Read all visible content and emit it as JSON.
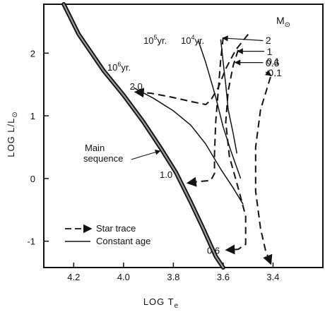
{
  "chart_data": {
    "type": "line",
    "xlabel": "LOG T",
    "xlabel_sub": "e",
    "ylabel": "LOG L/L",
    "ylabel_sub": "⊙",
    "x_reversed": true,
    "xlim": [
      4.32,
      3.2
    ],
    "ylim": [
      -1.42,
      2.78
    ],
    "x_ticks": [
      {
        "value": 4.2,
        "label": "4.2"
      },
      {
        "value": 4.0,
        "label": "4.0"
      },
      {
        "value": 3.8,
        "label": "3.8"
      },
      {
        "value": 3.6,
        "label": "3.6"
      },
      {
        "value": 3.4,
        "label": "3.4"
      }
    ],
    "y_ticks": [
      {
        "value": 2,
        "label": "2"
      },
      {
        "value": 1,
        "label": "1"
      },
      {
        "value": 0,
        "label": "0"
      },
      {
        "value": -1,
        "label": "-1"
      }
    ],
    "legend": {
      "placement": "bottom-left",
      "star_trace": "Star trace",
      "constant_age": "Constant age"
    },
    "mass_header": "M",
    "mass_header_sub": "⊙",
    "main_sequence": {
      "label_line1": "Main",
      "label_line2": "sequence",
      "points": [
        [
          4.24,
          2.78
        ],
        [
          4.18,
          2.3
        ],
        [
          4.08,
          1.72
        ],
        [
          4.0,
          1.33
        ],
        [
          3.92,
          0.9
        ],
        [
          3.85,
          0.48
        ],
        [
          3.79,
          0.1
        ],
        [
          3.73,
          -0.38
        ],
        [
          3.68,
          -0.8
        ],
        [
          3.63,
          -1.24
        ],
        [
          3.6,
          -1.42
        ]
      ]
    },
    "isochrones": [
      {
        "name": "10^6 yr.",
        "label_base": "10",
        "label_exp": "6",
        "label_suffix": "yr.",
        "label_at": [
          4.065,
          1.72
        ],
        "points": [
          [
            3.96,
            1.45
          ],
          [
            3.88,
            1.28
          ],
          [
            3.8,
            1.08
          ],
          [
            3.73,
            0.85
          ],
          [
            3.67,
            0.55
          ],
          [
            3.61,
            0.15
          ],
          [
            3.56,
            -0.15
          ],
          [
            3.52,
            -0.41
          ]
        ]
      },
      {
        "name": "10^5 yr.",
        "label_base": "10",
        "label_exp": "5",
        "label_suffix": "yr.",
        "label_at": [
          3.92,
          2.15
        ],
        "points": [
          [
            3.7,
            2.2
          ],
          [
            3.67,
            1.85
          ],
          [
            3.63,
            1.3
          ],
          [
            3.6,
            0.82
          ],
          [
            3.57,
            0.45
          ],
          [
            3.53,
            0.0
          ]
        ]
      },
      {
        "name": "10^4 yr.",
        "label_base": "10",
        "label_exp": "4",
        "label_suffix": "yr.",
        "label_at": [
          3.77,
          2.15
        ],
        "points": [
          [
            3.61,
            2.22
          ],
          [
            3.6,
            1.85
          ],
          [
            3.59,
            1.5
          ],
          [
            3.58,
            1.1
          ],
          [
            3.56,
            0.72
          ],
          [
            3.545,
            0.4
          ]
        ]
      }
    ],
    "star_traces": [
      {
        "name": "2.0",
        "label_at": [
          3.975,
          1.42
        ],
        "points": [
          [
            3.5,
            2.3
          ],
          [
            3.55,
            2.05
          ],
          [
            3.59,
            1.75
          ],
          [
            3.62,
            1.45
          ],
          [
            3.65,
            1.25
          ],
          [
            3.67,
            1.18
          ],
          [
            3.72,
            1.22
          ],
          [
            3.81,
            1.3
          ],
          [
            3.89,
            1.36
          ],
          [
            3.95,
            1.38
          ]
        ]
      },
      {
        "name": "1.0",
        "label_at": [
          3.855,
          0.01
        ],
        "points": [
          [
            3.6,
            2.25
          ],
          [
            3.61,
            1.9
          ],
          [
            3.62,
            1.4
          ],
          [
            3.63,
            0.9
          ],
          [
            3.635,
            0.4
          ],
          [
            3.635,
            0.08
          ],
          [
            3.65,
            -0.03
          ],
          [
            3.7,
            -0.05
          ],
          [
            3.74,
            -0.07
          ]
        ]
      },
      {
        "name": "0.6",
        "label_at": [
          3.665,
          -1.2
        ],
        "points": [
          [
            3.54,
            2.05
          ],
          [
            3.56,
            1.8
          ],
          [
            3.58,
            1.4
          ],
          [
            3.59,
            0.9
          ],
          [
            3.575,
            0.35
          ],
          [
            3.54,
            -0.15
          ],
          [
            3.51,
            -0.6
          ],
          [
            3.51,
            -1.05
          ],
          [
            3.54,
            -1.13
          ],
          [
            3.585,
            -1.14
          ]
        ]
      },
      {
        "name": "0.1",
        "label_at": [
          3.425,
          1.82
        ],
        "points": [
          [
            3.41,
            1.62
          ],
          [
            3.45,
            1.1
          ],
          [
            3.47,
            0.5
          ],
          [
            3.47,
            -0.2
          ],
          [
            3.45,
            -0.8
          ],
          [
            3.43,
            -1.15
          ],
          [
            3.41,
            -1.35
          ]
        ]
      }
    ],
    "mass_labels": [
      {
        "label": "2",
        "at": [
          3.43,
          2.15
        ]
      },
      {
        "label": "1",
        "at": [
          3.425,
          1.97
        ]
      },
      {
        "label": "0.6",
        "at": [
          3.43,
          1.79
        ]
      },
      {
        "label": "0.1",
        "at": [
          3.42,
          1.63
        ]
      }
    ]
  }
}
